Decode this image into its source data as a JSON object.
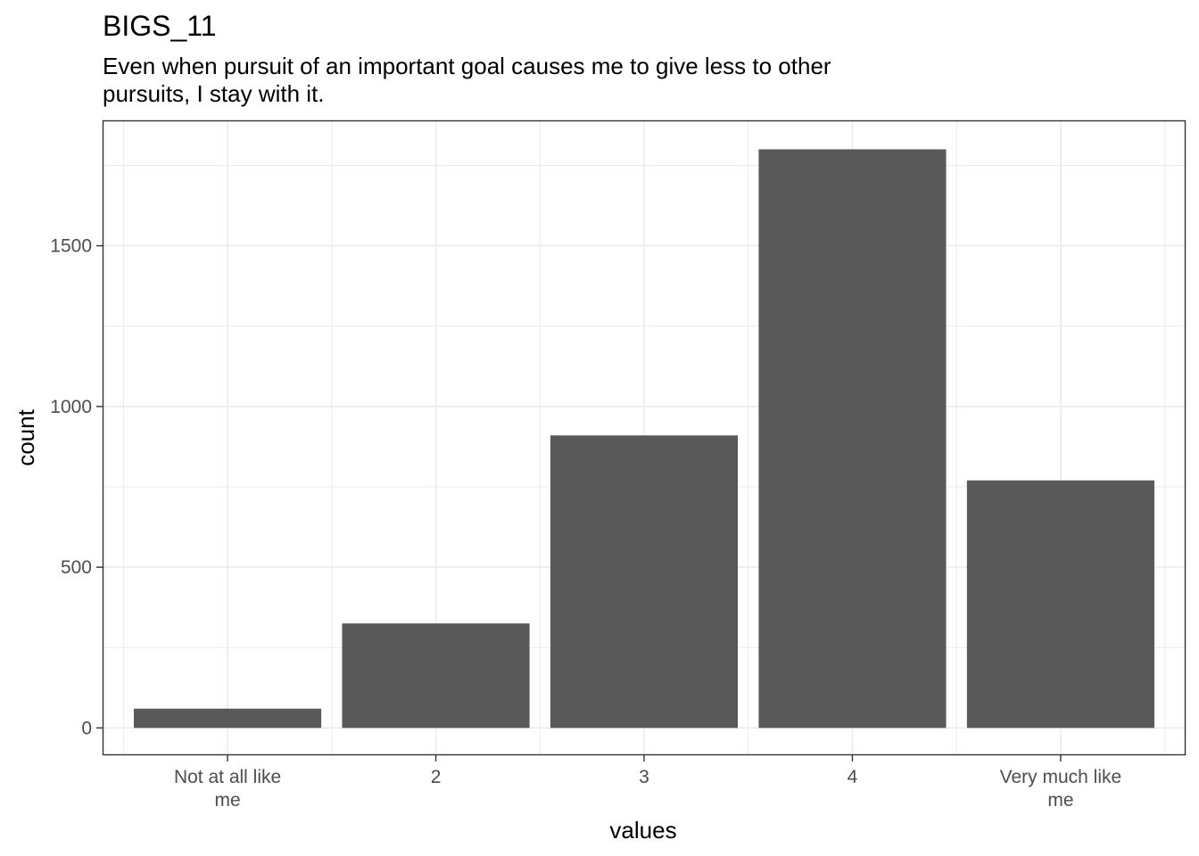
{
  "chart_data": {
    "type": "bar",
    "title": "BIGS_11",
    "subtitle_lines": [
      "Even when pursuit of an important goal causes me to give less to other",
      "pursuits, I stay with it."
    ],
    "xlabel": "values",
    "ylabel": "count",
    "categories": [
      "Not at all like me",
      "2",
      "3",
      "4",
      "Very much like me"
    ],
    "category_label_lines": [
      [
        "Not at all like",
        "me"
      ],
      [
        "2"
      ],
      [
        "3"
      ],
      [
        "4"
      ],
      [
        "Very much like",
        "me"
      ]
    ],
    "values": [
      60,
      325,
      910,
      1800,
      770
    ],
    "ylim": [
      -85,
      1890
    ],
    "yticks": [
      0,
      500,
      1000,
      1500
    ],
    "ytick_labels": [
      "0",
      "500",
      "1000",
      "1500"
    ],
    "grid": true,
    "colors": {
      "bar": "#595959",
      "grid": "#ebebeb",
      "panel_border": "#333333"
    }
  }
}
